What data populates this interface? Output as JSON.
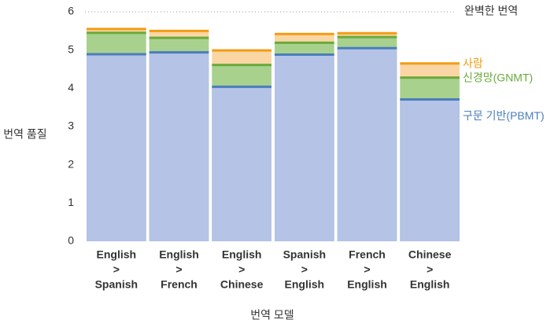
{
  "chart_data": {
    "type": "layered-bar",
    "y_label": "번역 품질",
    "x_label": "번역 모델",
    "categories": [
      [
        "English",
        ">",
        "Spanish"
      ],
      [
        "English",
        ">",
        "French"
      ],
      [
        "English",
        ">",
        "Chinese"
      ],
      [
        "Spanish",
        ">",
        "English"
      ],
      [
        "French",
        ">",
        "English"
      ],
      [
        "Chinese",
        ">",
        "English"
      ]
    ],
    "series": [
      {
        "name": "사람",
        "color": "#f39c12",
        "fill": "#fad6a5",
        "values": [
          5.55,
          5.5,
          4.99,
          5.42,
          5.44,
          4.65
        ]
      },
      {
        "name": "신경망(GNMT)",
        "color": "#6aaa3a",
        "fill": "#a9d18e",
        "values": [
          5.45,
          5.32,
          4.61,
          5.19,
          5.34,
          4.28
        ]
      },
      {
        "name": "구문 기반(PBMT)",
        "color": "#4a7ebb",
        "fill": "#b4c3e6",
        "values": [
          4.89,
          4.94,
          4.04,
          4.88,
          5.05,
          3.71
        ]
      }
    ],
    "reference_line": {
      "value": 6,
      "label": "완벽한 번역"
    },
    "ylim": [
      0,
      6
    ],
    "yticks": [
      0,
      1,
      2,
      3,
      4,
      5,
      6
    ]
  }
}
